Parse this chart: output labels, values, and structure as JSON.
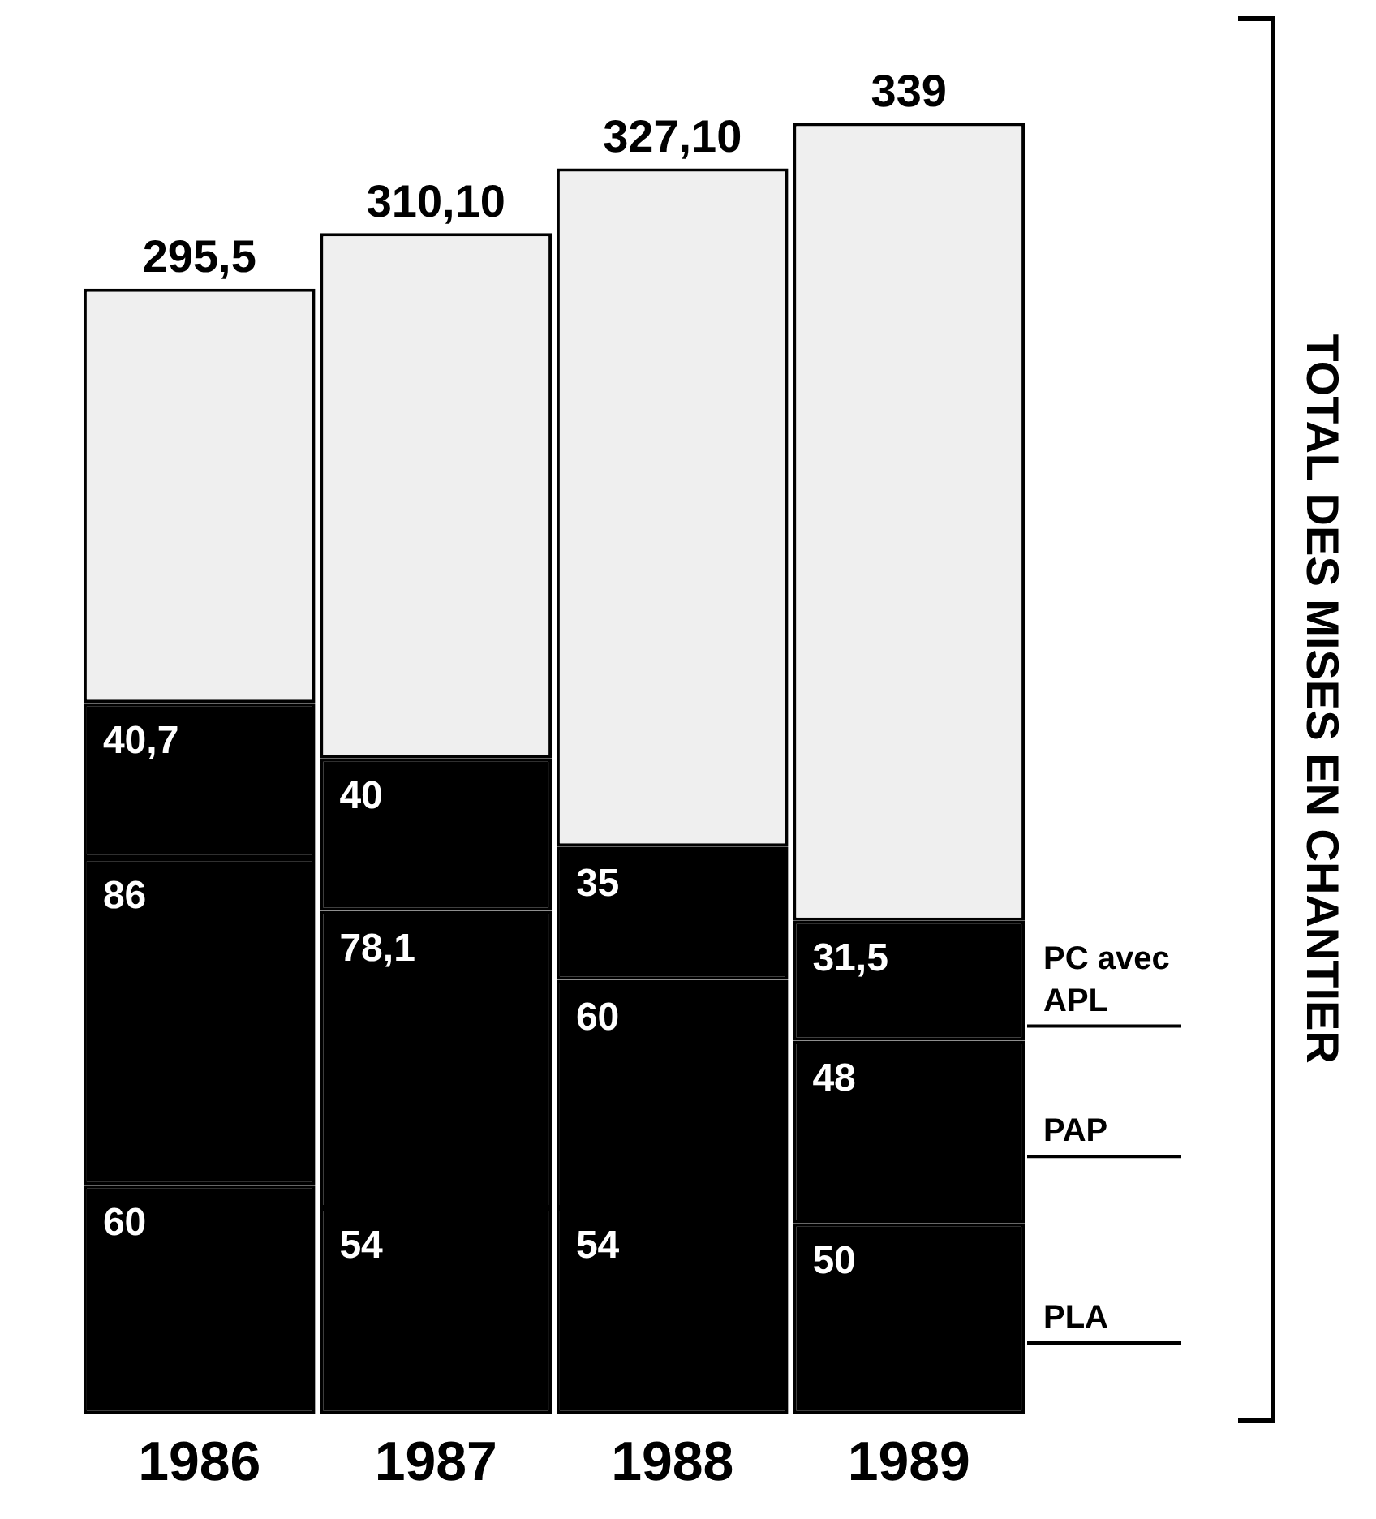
{
  "chart_data": {
    "type": "bar",
    "stacked": true,
    "annotations": [
      "TOTAL DES MISES EN CHANTIER"
    ],
    "categories": [
      "1986",
      "1987",
      "1988",
      "1989"
    ],
    "series": [
      {
        "name": "PLA",
        "color": "#000000",
        "values": [
          60,
          54,
          54,
          50
        ],
        "value_labels": [
          "60",
          "54",
          "54",
          "50"
        ]
      },
      {
        "name": "PAP",
        "color": "#000000",
        "values": [
          86,
          78.1,
          60,
          48
        ],
        "value_labels": [
          "86",
          "78,1",
          "60",
          "48"
        ]
      },
      {
        "name": "PC avec APL",
        "color": "#000000",
        "values": [
          40.7,
          40,
          35,
          31.5
        ],
        "value_labels": [
          "40,7",
          "40",
          "35",
          "31,5"
        ]
      },
      {
        "color": "#efefef",
        "values": [
          108.8,
          138,
          178.1,
          209.5
        ]
      }
    ],
    "totals": [
      "295,5",
      "310,10",
      "327,10",
      "339"
    ]
  }
}
